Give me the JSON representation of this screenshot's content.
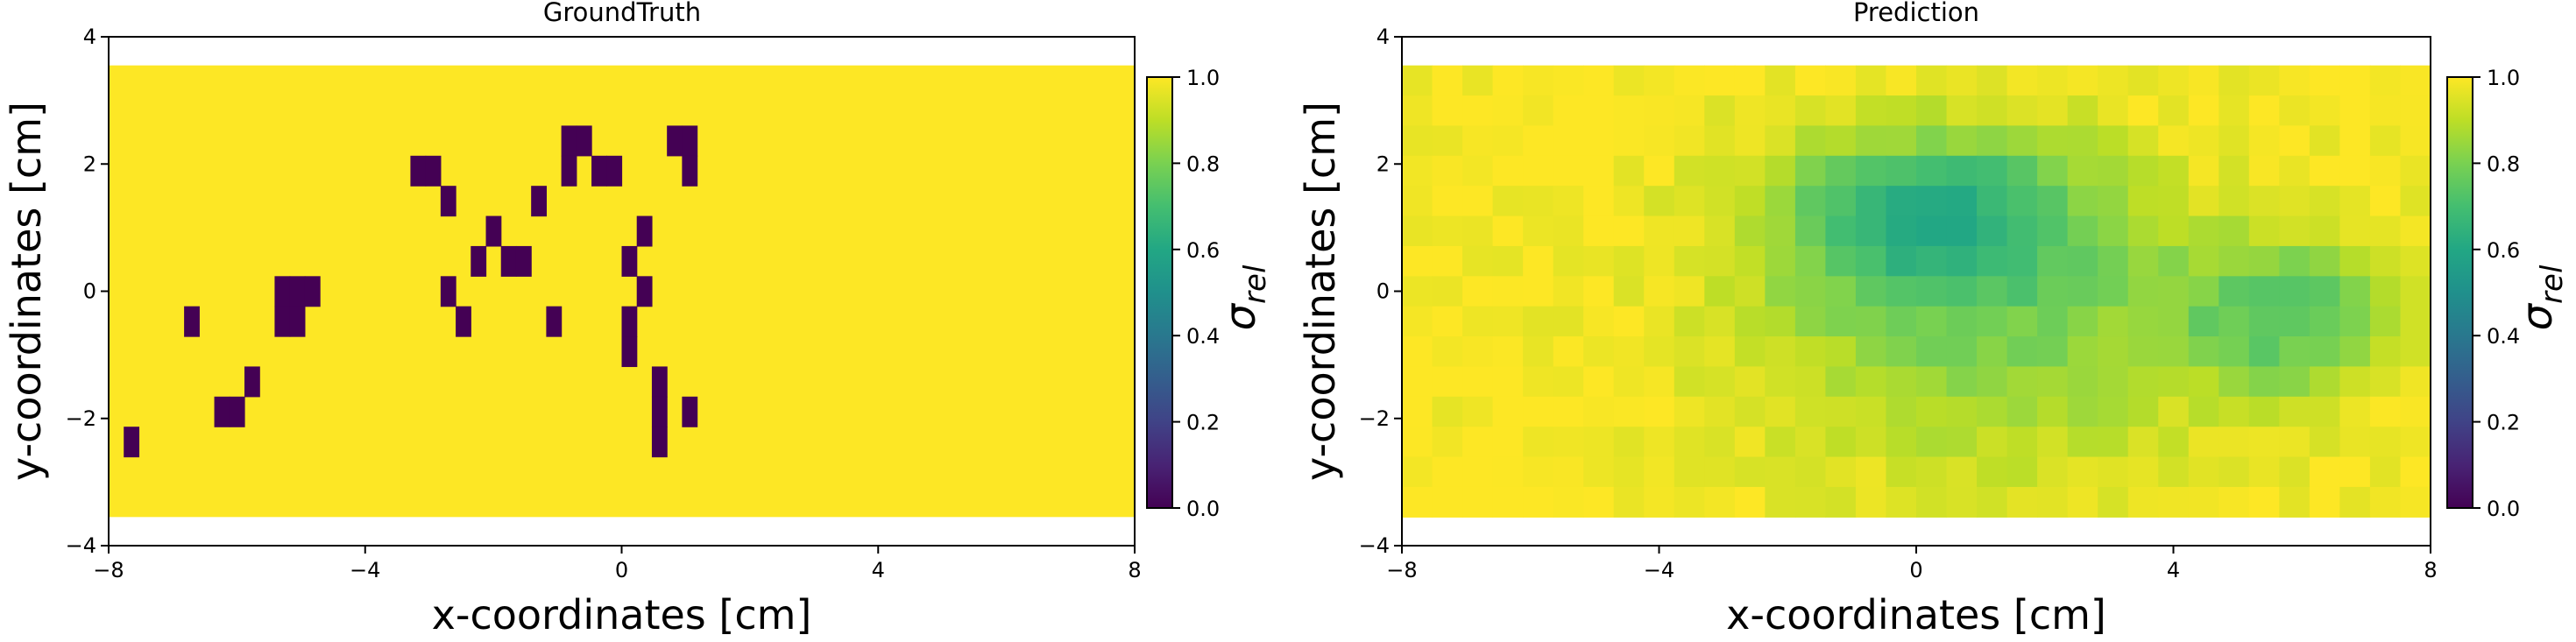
{
  "chart_data": [
    {
      "type": "heatmap",
      "title": "GroundTruth",
      "xlabel": "x-coordinates [cm]",
      "ylabel": "y-coordinates [cm]",
      "xlim": [
        -8,
        8
      ],
      "ylim": [
        -4,
        4
      ],
      "xticks": [
        "-8",
        "-4",
        "0",
        "4",
        "8"
      ],
      "yticks": [
        "-4",
        "-2",
        "0",
        "2",
        "4"
      ],
      "x_extent": [
        -8,
        8
      ],
      "y_extent": [
        -3.55,
        3.55
      ],
      "cols": 34,
      "rows": 15,
      "colormap": "viridis",
      "colorbar": {
        "label": "σrel",
        "range": [
          0,
          1
        ],
        "ticks": [
          "0.0",
          "0.2",
          "0.4",
          "0.6",
          "0.8",
          "1.0"
        ]
      },
      "background_value": 1.0,
      "zero_cells": [
        [
          5,
          8
        ],
        [
          1,
          12
        ],
        [
          7,
          11
        ],
        [
          8,
          11
        ],
        [
          9,
          10
        ],
        [
          11,
          7
        ],
        [
          12,
          7
        ],
        [
          13,
          7
        ],
        [
          11,
          8
        ],
        [
          12,
          8
        ],
        [
          20,
          3
        ],
        [
          21,
          3
        ],
        [
          22,
          4
        ],
        [
          22,
          7
        ],
        [
          23,
          8
        ],
        [
          24,
          6
        ],
        [
          25,
          5
        ],
        [
          26,
          6
        ],
        [
          27,
          6
        ],
        [
          28,
          4
        ],
        [
          29,
          8
        ],
        [
          30,
          2
        ],
        [
          31,
          2
        ],
        [
          30,
          3
        ],
        [
          32,
          3
        ],
        [
          33,
          3
        ],
        [
          34,
          6
        ],
        [
          35,
          7
        ],
        [
          35,
          5
        ],
        [
          34,
          8
        ],
        [
          34,
          9
        ],
        [
          36,
          10
        ],
        [
          36,
          11
        ],
        [
          36,
          12
        ],
        [
          37,
          2
        ],
        [
          38,
          2
        ],
        [
          38,
          11
        ],
        [
          38,
          3
        ]
      ]
    },
    {
      "type": "heatmap",
      "title": "Prediction",
      "xlabel": "x-coordinates [cm]",
      "ylabel": "y-coordinates [cm]",
      "xlim": [
        -8,
        8
      ],
      "ylim": [
        -4,
        4
      ],
      "xticks": [
        "-8",
        "-4",
        "0",
        "4",
        "8"
      ],
      "yticks": [
        "-4",
        "-2",
        "0",
        "2",
        "4"
      ],
      "x_extent": [
        -8,
        8
      ],
      "y_extent": [
        -3.55,
        3.55
      ],
      "cols": 34,
      "rows": 15,
      "colormap": "viridis",
      "colorbar": {
        "label": "σrel",
        "range": [
          0,
          1
        ],
        "ticks": [
          "0.0",
          "0.2",
          "0.4",
          "0.6",
          "0.8",
          "1.0"
        ]
      },
      "value_range": [
        0.6,
        1.0
      ],
      "description_values": "smooth field ~1.0 at edges, dipping to ~0.62 around x≈0..1, y≈1..2 and x≈5..6, y≈-0.5"
    }
  ]
}
